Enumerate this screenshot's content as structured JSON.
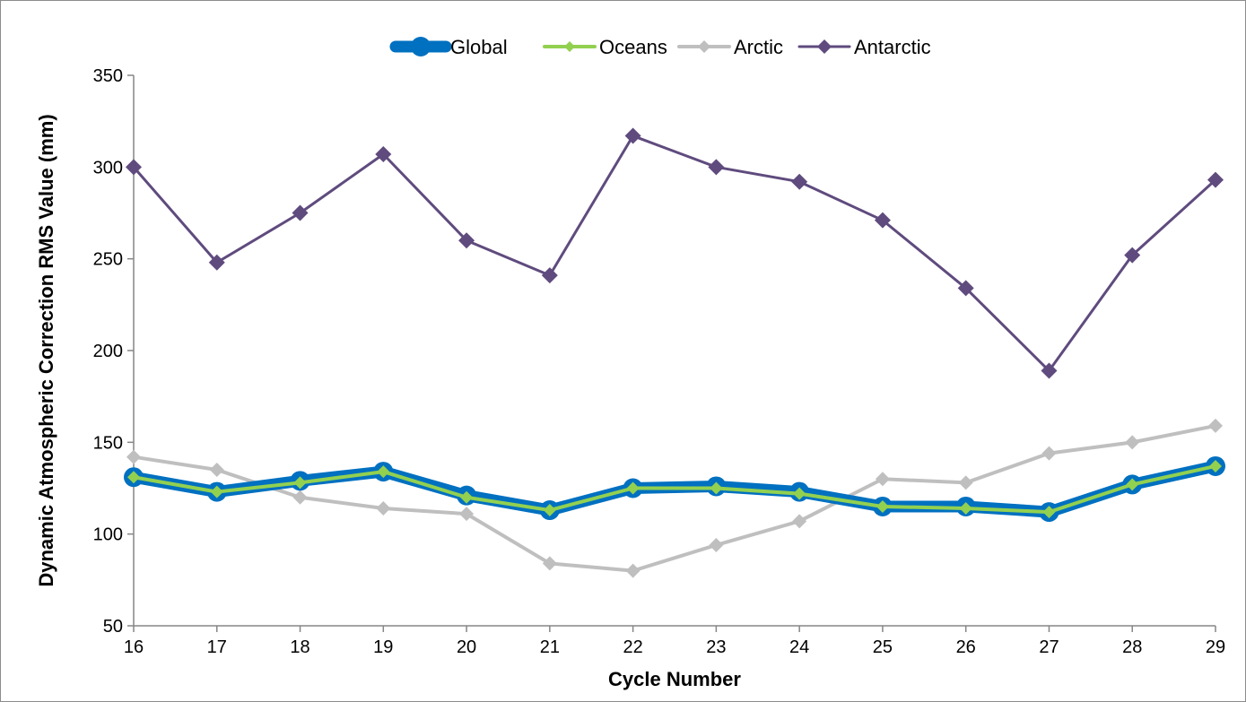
{
  "chart_data": {
    "type": "line",
    "title": "",
    "xlabel": "Cycle Number",
    "ylabel": "Dynamic Atmospheric Correction RMS Value (mm)",
    "x": [
      16,
      17,
      18,
      19,
      20,
      21,
      22,
      23,
      24,
      25,
      26,
      27,
      28,
      29
    ],
    "xlim": [
      16,
      29
    ],
    "ylim": [
      50,
      350
    ],
    "yticks": [
      50,
      100,
      150,
      200,
      250,
      300,
      350
    ],
    "grid": false,
    "legend_position": "top-center",
    "series": [
      {
        "name": "Global",
        "color": "#0070C0",
        "marker": "circle",
        "values": [
          131,
          123,
          129,
          134,
          121,
          113,
          125,
          126,
          123,
          115,
          115,
          112,
          127,
          137
        ]
      },
      {
        "name": "Oceans",
        "color": "#92D050",
        "marker": "diamond",
        "values": [
          131,
          123,
          128,
          134,
          120,
          113,
          125,
          125,
          122,
          115,
          114,
          112,
          127,
          137
        ]
      },
      {
        "name": "Arctic",
        "color": "#BFBFBF",
        "marker": "diamond",
        "values": [
          142,
          135,
          120,
          114,
          111,
          84,
          80,
          94,
          107,
          130,
          128,
          144,
          150,
          159
        ]
      },
      {
        "name": "Antarctic",
        "color": "#5F4B7E",
        "marker": "diamond",
        "values": [
          300,
          248,
          275,
          307,
          260,
          241,
          317,
          300,
          292,
          271,
          234,
          189,
          252,
          293
        ]
      }
    ]
  }
}
